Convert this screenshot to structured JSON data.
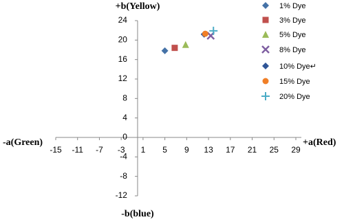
{
  "chart_data": {
    "type": "scatter",
    "x_axis_left_label": "-a(Green)",
    "x_axis_right_label": "+a(Red)",
    "y_axis_top_label": "+b(Yellow)",
    "y_axis_bottom_label": "-b(blue)",
    "xlim": [
      -15,
      29
    ],
    "xticks": [
      -15,
      -11,
      -7,
      -3,
      1,
      5,
      9,
      13,
      17,
      21,
      25,
      29
    ],
    "ylim": [
      -12,
      24
    ],
    "yticks": [
      -12,
      -8,
      -4,
      0,
      4,
      8,
      12,
      16,
      20,
      24
    ],
    "legend": "right",
    "series": [
      {
        "name": "1% Dye",
        "color": "#4572a7",
        "marker": "diamond",
        "x": [
          5.0
        ],
        "values": [
          17.8
        ]
      },
      {
        "name": "3% Dye",
        "color": "#c0504d",
        "marker": "square",
        "x": [
          6.8
        ],
        "values": [
          18.4
        ]
      },
      {
        "name": "5% Dye",
        "color": "#9bbb59",
        "marker": "triangle",
        "x": [
          8.8
        ],
        "values": [
          19.1
        ]
      },
      {
        "name": "8% Dye",
        "color": "#7f5fa1",
        "marker": "cross",
        "x": [
          13.4
        ],
        "values": [
          20.9
        ]
      },
      {
        "name": "10% Dye↵",
        "color": "#2f5597",
        "marker": "diamond",
        "x": [
          12.2
        ],
        "values": [
          21.2
        ]
      },
      {
        "name": "15% Dye",
        "color": "#f07f27",
        "marker": "circle",
        "x": [
          12.4
        ],
        "values": [
          21.3
        ]
      },
      {
        "name": "20% Dye",
        "color": "#4bacc6",
        "marker": "plus",
        "x": [
          13.9
        ],
        "values": [
          21.9
        ]
      }
    ]
  }
}
